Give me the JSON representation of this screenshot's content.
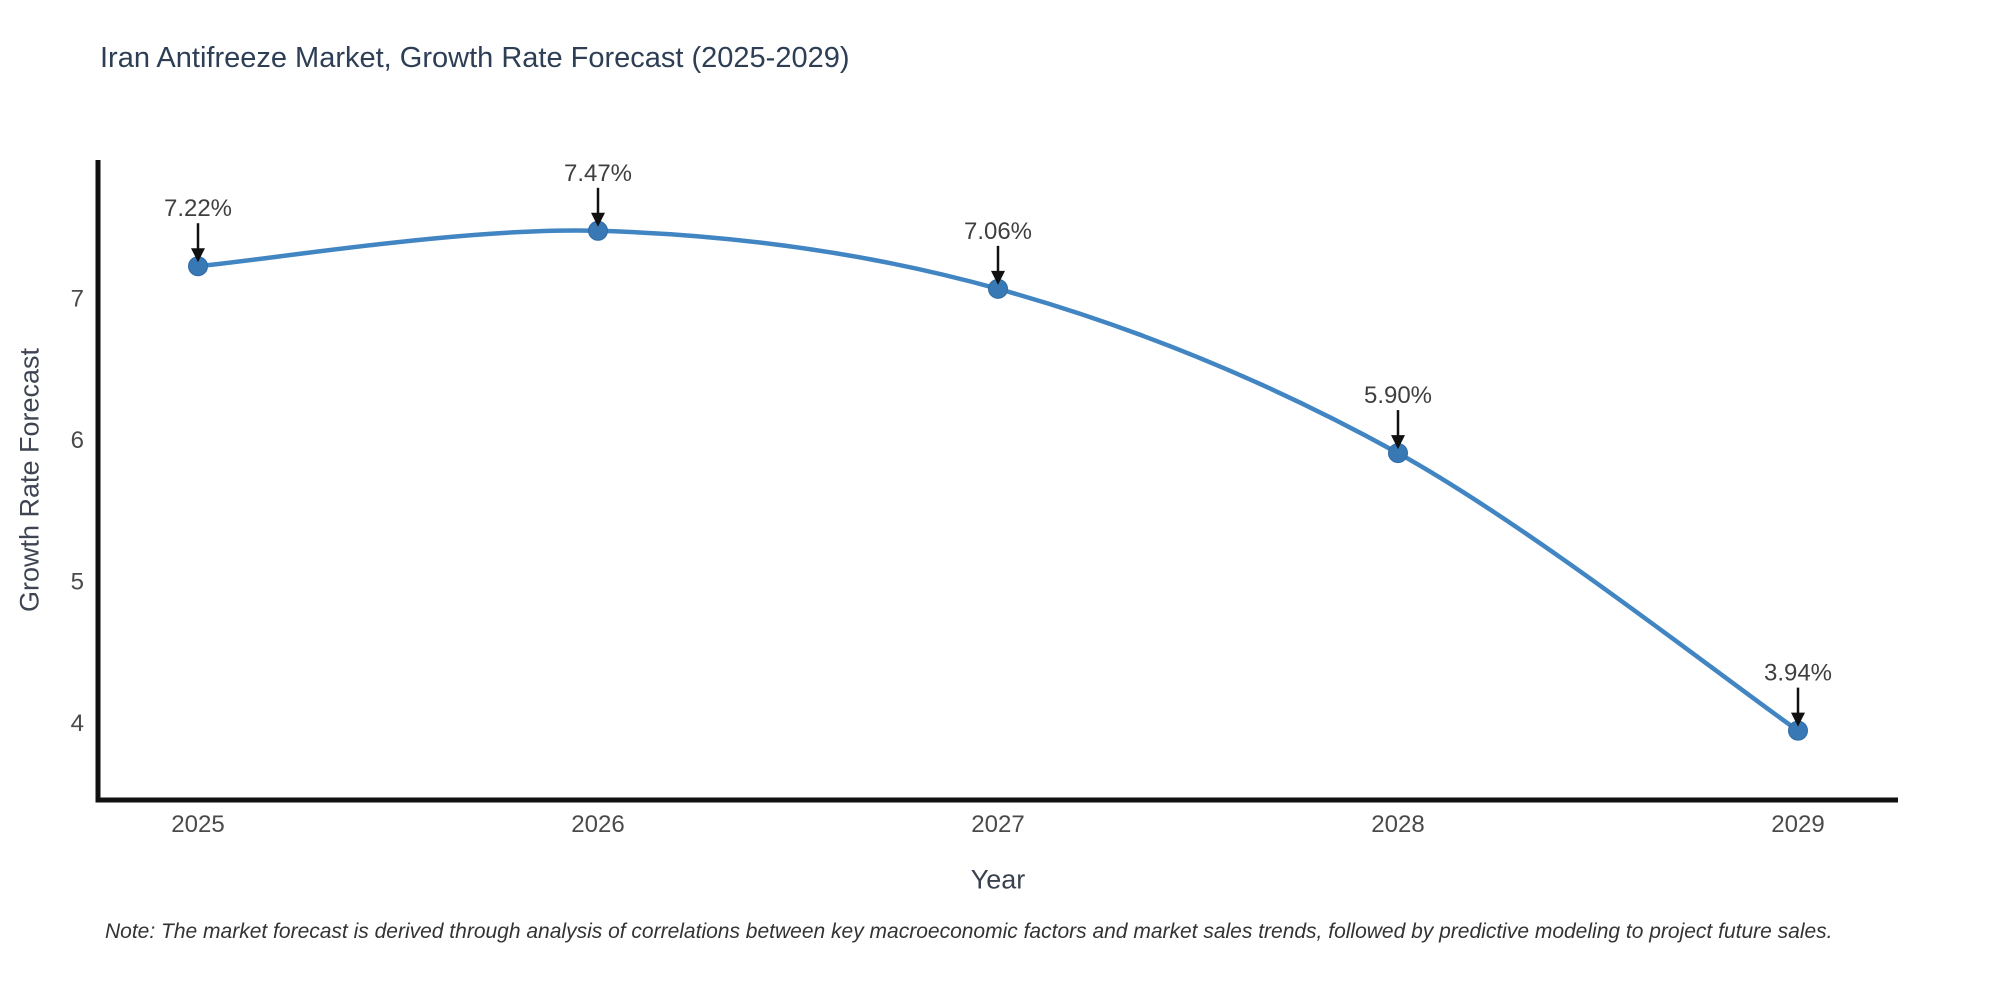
{
  "page": {
    "background": "#ffffff"
  },
  "note": "Note: The market forecast is derived through analysis of correlations between key macroeconomic factors and market sales trends, followed by predictive modeling to project future sales.",
  "chart_data": {
    "type": "line",
    "title": "Iran Antifreeze Market, Growth Rate Forecast (2025-2029)",
    "xlabel": "Year",
    "ylabel": "Growth Rate Forecast",
    "x": [
      2025,
      2026,
      2027,
      2028,
      2029
    ],
    "series": [
      {
        "name": "Growth Rate Forecast",
        "values": [
          7.22,
          7.47,
          7.06,
          5.9,
          3.94
        ]
      }
    ],
    "point_labels": [
      "7.22%",
      "7.47%",
      "7.06%",
      "5.90%",
      "3.94%"
    ],
    "xticks": [
      2025,
      2026,
      2027,
      2028,
      2029
    ],
    "yticks": [
      4,
      5,
      6,
      7
    ],
    "xlim": [
      2024.75,
      2029.25
    ],
    "ylim": [
      3.45,
      7.97
    ],
    "grid": false,
    "legend": "none",
    "line_shape": "spline",
    "marker": "circle",
    "annotation_arrows": true,
    "colors": {
      "line": "#4185c2",
      "marker": "#3878b4",
      "marker_edge": "#2f6ba6",
      "axis": "#111111",
      "tick_label": "#4a4a4a",
      "title": "#2d3e55",
      "annotation_text": "#3f3f3f",
      "arrow": "#111111"
    }
  }
}
